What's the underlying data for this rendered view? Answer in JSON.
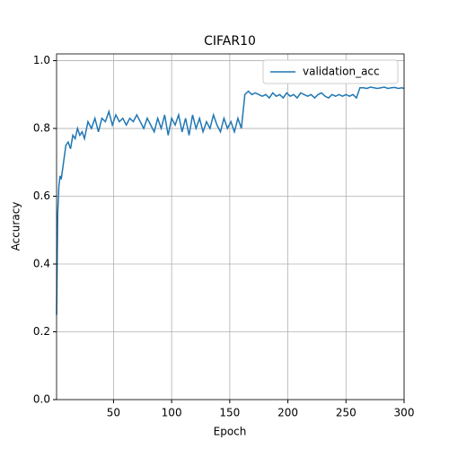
{
  "chart_data": {
    "type": "line",
    "title": "CIFAR10",
    "xlabel": "Epoch",
    "ylabel": "Accuracy",
    "x": [
      1,
      2,
      3,
      4,
      5,
      7,
      9,
      11,
      13,
      15,
      17,
      19,
      21,
      23,
      25,
      28,
      31,
      34,
      37,
      40,
      43,
      46,
      49,
      52,
      55,
      58,
      61,
      64,
      67,
      70,
      73,
      76,
      79,
      82,
      85,
      88,
      91,
      94,
      97,
      100,
      103,
      106,
      109,
      112,
      115,
      118,
      121,
      124,
      127,
      130,
      133,
      136,
      139,
      142,
      145,
      148,
      151,
      154,
      157,
      160,
      163,
      166,
      169,
      172,
      175,
      178,
      181,
      184,
      187,
      190,
      193,
      196,
      199,
      202,
      205,
      208,
      211,
      214,
      217,
      220,
      223,
      226,
      229,
      232,
      235,
      238,
      241,
      244,
      247,
      250,
      253,
      256,
      259,
      262,
      265,
      268,
      271,
      274,
      277,
      280,
      283,
      286,
      289,
      292,
      295,
      298,
      300
    ],
    "series": [
      {
        "name": "validation_acc",
        "color": "#1f77b4",
        "values": [
          0.25,
          0.55,
          0.63,
          0.66,
          0.65,
          0.7,
          0.75,
          0.76,
          0.74,
          0.78,
          0.77,
          0.8,
          0.78,
          0.79,
          0.77,
          0.82,
          0.8,
          0.83,
          0.79,
          0.83,
          0.82,
          0.85,
          0.81,
          0.84,
          0.82,
          0.83,
          0.81,
          0.83,
          0.82,
          0.84,
          0.82,
          0.8,
          0.83,
          0.81,
          0.79,
          0.83,
          0.8,
          0.84,
          0.78,
          0.83,
          0.81,
          0.84,
          0.79,
          0.83,
          0.78,
          0.84,
          0.8,
          0.83,
          0.79,
          0.82,
          0.8,
          0.84,
          0.81,
          0.79,
          0.83,
          0.8,
          0.82,
          0.79,
          0.83,
          0.8,
          0.9,
          0.91,
          0.9,
          0.905,
          0.9,
          0.895,
          0.9,
          0.89,
          0.905,
          0.895,
          0.9,
          0.89,
          0.905,
          0.895,
          0.9,
          0.89,
          0.905,
          0.9,
          0.895,
          0.9,
          0.89,
          0.9,
          0.905,
          0.895,
          0.89,
          0.9,
          0.895,
          0.9,
          0.895,
          0.9,
          0.895,
          0.9,
          0.89,
          0.92,
          0.92,
          0.918,
          0.922,
          0.92,
          0.918,
          0.92,
          0.922,
          0.918,
          0.92,
          0.921,
          0.918,
          0.92,
          0.918
        ]
      }
    ],
    "xlim": [
      1,
      300
    ],
    "ylim": [
      0,
      1.02
    ],
    "xticks": [
      50,
      100,
      150,
      200,
      250,
      300
    ],
    "yticks": [
      {
        "value": 0,
        "label": "0.0"
      },
      0.2,
      0.4,
      0.6,
      0.8,
      {
        "value": 1,
        "label": "1.0"
      }
    ],
    "grid": true,
    "legend": "upper right"
  }
}
